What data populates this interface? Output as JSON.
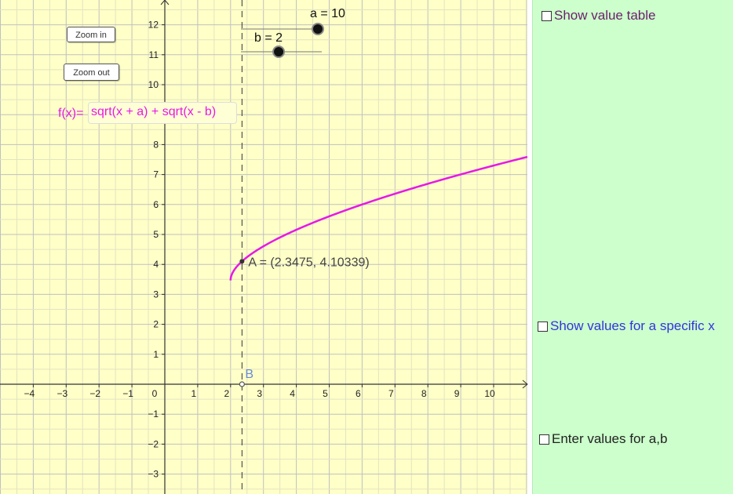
{
  "buttons": {
    "zoom_in": "Zoom in",
    "zoom_out": "Zoom out"
  },
  "function_input": {
    "label": "f(x)=",
    "value": "sqrt(x + a) + sqrt(x - b)"
  },
  "sliders": [
    {
      "name": "a",
      "label": "a = 10",
      "value": 10
    },
    {
      "name": "b",
      "label": "b = 2",
      "value": 2
    }
  ],
  "point_a": {
    "label": "A = (2.3475, 4.10339)",
    "x": 2.3475,
    "y": 4.10339
  },
  "point_b": {
    "label": "B",
    "x": 2.3475,
    "y": 0
  },
  "x_tick_labels": [
    "−4",
    "−3",
    "−2",
    "−1",
    "0",
    "1",
    "2",
    "3",
    "4",
    "5",
    "6",
    "7",
    "8",
    "9",
    "10"
  ],
  "y_tick_labels": [
    "−3",
    "−2",
    "−1",
    "1",
    "2",
    "3",
    "4",
    "5",
    "6",
    "7",
    "8",
    "10",
    "11",
    "12"
  ],
  "side_panel": {
    "show_value_table": "Show value table",
    "show_values_specific_x": "Show values for a specific x",
    "enter_values_ab": "Enter values for a,b"
  },
  "colors": {
    "graph_background": "#ffffc8",
    "panel_background": "#ccffcc",
    "curve": "#e619e6",
    "specific_x_label": "#3333dd",
    "value_table_label": "#6b1f6b"
  },
  "chart_data": {
    "type": "line",
    "series": [],
    "function": "sqrt(x + a) + sqrt(x - b)",
    "parameters": {
      "a": 10,
      "b": 2
    },
    "xlim": [
      -4.6,
      11.2
    ],
    "ylim": [
      -3.6,
      12.8
    ],
    "grid": true,
    "x_ticks": [
      -4,
      -3,
      -2,
      -1,
      0,
      1,
      2,
      3,
      4,
      5,
      6,
      7,
      8,
      9,
      10
    ],
    "y_ticks": [
      -3,
      -2,
      -1,
      1,
      2,
      3,
      4,
      5,
      6,
      7,
      8,
      10,
      11,
      12
    ],
    "vertical_line_x": 2.3475
  }
}
